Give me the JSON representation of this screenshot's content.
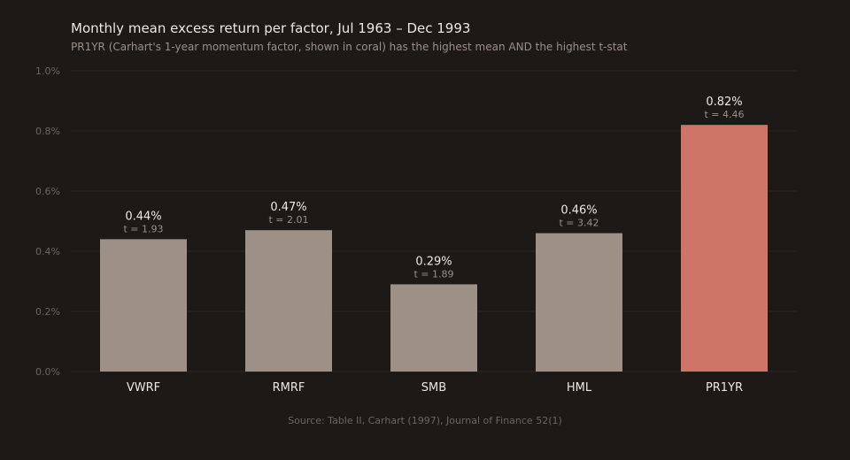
{
  "chart_data": {
    "type": "bar",
    "title": "Monthly mean excess return per factor, Jul 1963 – Dec 1993",
    "subtitle": "PR1YR (Carhart's 1-year momentum factor, shown in coral) has the highest mean AND the highest t-stat",
    "source": "Source: Table II, Carhart (1997), Journal of Finance 52(1)",
    "categories": [
      "VWRF",
      "RMRF",
      "SMB",
      "HML",
      "PR1YR"
    ],
    "values": [
      0.44,
      0.47,
      0.29,
      0.46,
      0.82
    ],
    "value_labels": [
      "0.44%",
      "0.47%",
      "0.29%",
      "0.46%",
      "0.82%"
    ],
    "t_stats": [
      "t = 1.93",
      "t = 2.01",
      "t = 1.89",
      "t = 3.42",
      "t = 4.46"
    ],
    "highlight_index": 4,
    "ylim": [
      0,
      1.0
    ],
    "yticks": [
      0,
      0.2,
      0.4,
      0.6,
      0.8,
      1.0
    ],
    "ytick_labels": [
      "0.0%",
      "0.2%",
      "0.4%",
      "0.6%",
      "0.8%",
      "1.0%"
    ],
    "grid": true,
    "colors": {
      "bar": "#9c9087",
      "highlight": "#cf7568"
    }
  }
}
